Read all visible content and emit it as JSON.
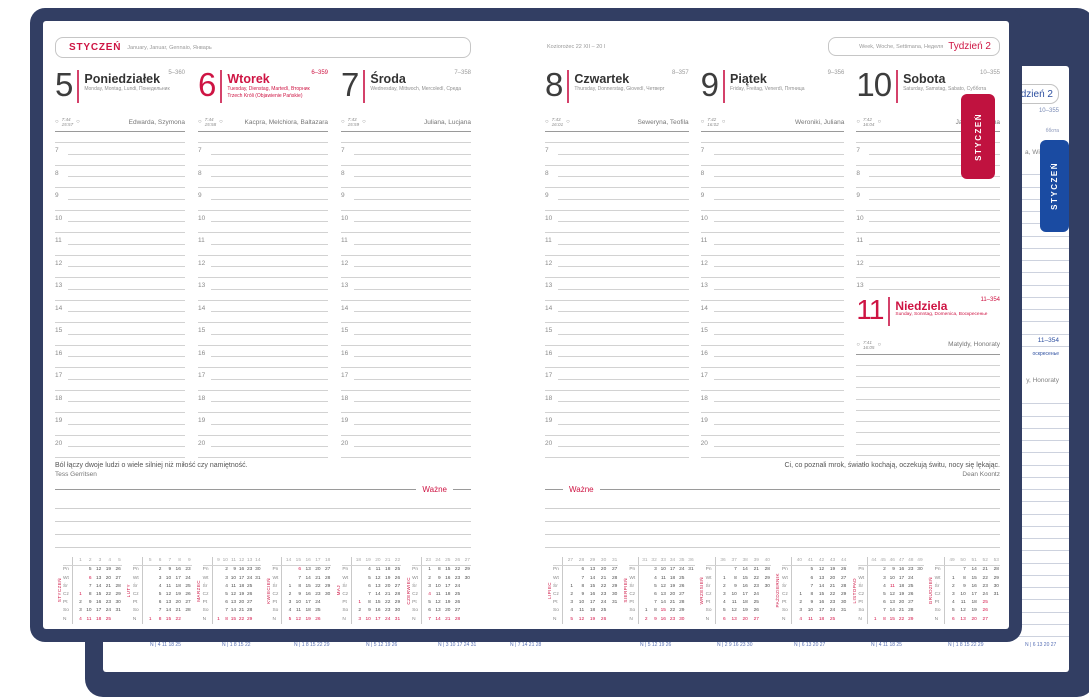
{
  "accent_red": "#ce1443",
  "accent_blue": "#1a4ba2",
  "cover_navy": "#323e63",
  "tabs": {
    "front": "STYCZEŃ",
    "back": "STYCZEŃ"
  },
  "page_left": {
    "month": "STYCZEŃ",
    "month_translations": "January, Januar, Gennaio, Январь",
    "quote": "Ból łączy dwoje ludzi o wiele silniej niż miłość czy namiętność.",
    "quote_author": "Tess Gerritsen",
    "important_label": "Ważne"
  },
  "page_right": {
    "zodiac": "Koziorożec 22 XII – 20 I",
    "week_translations": "Week, Woche, Settimana, Неделя",
    "week_label": "Tydzień 2",
    "quote": "Ci, co poznali mrok, światło kochają, oczekują świtu, nocy się lękając.",
    "quote_author": "Dean Koontz",
    "important_label": "Ważne"
  },
  "hour_labels": [
    7,
    8,
    9,
    10,
    11,
    12,
    13,
    14,
    15,
    16,
    17,
    18,
    19,
    20
  ],
  "days": [
    {
      "num": "5",
      "name": "Poniedziałek",
      "trans": "Monday, Montag, Lundi, Понедельник",
      "doy": "5–360",
      "sunrise": "7:44",
      "sunset": "15:57",
      "namedays": "Edwarda, Szymona"
    },
    {
      "num": "6",
      "name": "Wtorek",
      "trans": "Tuesday, Dienstag, Martedì, Вторник",
      "holiday": "Trzech Króli (Objawienie Pańskie)",
      "doy": "6–359",
      "sunrise": "7:44",
      "sunset": "15:58",
      "namedays": "Kacpra, Melchiora, Baltazara"
    },
    {
      "num": "7",
      "name": "Środa",
      "trans": "Wednesday, Mittwoch, Mercoledì, Среда",
      "doy": "7–358",
      "sunrise": "7:43",
      "sunset": "15:59",
      "namedays": "Juliana, Lucjana"
    },
    {
      "num": "8",
      "name": "Czwartek",
      "trans": "Thursday, Donnerstag, Giovedì, Четверг",
      "doy": "8–357",
      "sunrise": "7:43",
      "sunset": "16:01",
      "namedays": "Seweryna, Teofila"
    },
    {
      "num": "9",
      "name": "Piątek",
      "trans": "Friday, Freitag, Venerdì, Пятница",
      "doy": "9–356",
      "sunrise": "7:42",
      "sunset": "16:02",
      "namedays": "Weroniki, Juliana"
    },
    {
      "num": "10",
      "name": "Sobota",
      "trans": "Saturday, Samstag, Sabato, Суббота",
      "doy": "10–355",
      "sunrise": "7:42",
      "sunset": "16:04",
      "namedays": "Jana, Wilhelma"
    },
    {
      "num": "11",
      "name": "Niedziela",
      "trans": "Sunday, Sonntag, Domenica, Воскресенье",
      "doy": "11–354",
      "sunrise": "7:41",
      "sunset": "16:05",
      "namedays": "Matyldy, Honoraty"
    }
  ],
  "minicalendar": {
    "weekday_labels": [
      "Pn",
      "Wt",
      "Śr",
      "Cz",
      "Pt",
      "So",
      "N"
    ],
    "months": [
      {
        "name": "STYCZEŃ",
        "weeks": [
          1,
          2,
          3,
          4,
          5
        ],
        "rows": [
          [
            "",
            5,
            12,
            19,
            26
          ],
          [
            "",
            6,
            13,
            20,
            27
          ],
          [
            "",
            7,
            14,
            21,
            28
          ],
          [
            1,
            8,
            15,
            22,
            29
          ],
          [
            2,
            9,
            16,
            23,
            30
          ],
          [
            3,
            10,
            17,
            24,
            31
          ],
          [
            4,
            11,
            18,
            25,
            ""
          ]
        ],
        "red": [
          1,
          6,
          4,
          11,
          18,
          25
        ]
      },
      {
        "name": "LUTY",
        "weeks": [
          5,
          6,
          7,
          8,
          9
        ],
        "rows": [
          [
            "",
            2,
            9,
            16,
            23
          ],
          [
            "",
            3,
            10,
            17,
            24
          ],
          [
            "",
            4,
            11,
            18,
            25
          ],
          [
            "",
            5,
            12,
            19,
            26
          ],
          [
            "",
            6,
            13,
            20,
            27
          ],
          [
            "",
            7,
            14,
            21,
            28
          ],
          [
            1,
            8,
            15,
            22,
            ""
          ]
        ],
        "red": [
          1,
          8,
          15,
          22
        ]
      },
      {
        "name": "MARZEC",
        "weeks": [
          9,
          10,
          11,
          12,
          13,
          14
        ],
        "rows": [
          [
            "",
            2,
            9,
            16,
            23,
            30
          ],
          [
            "",
            3,
            10,
            17,
            24,
            31
          ],
          [
            "",
            4,
            11,
            18,
            25,
            ""
          ],
          [
            "",
            5,
            12,
            19,
            26,
            ""
          ],
          [
            "",
            6,
            13,
            20,
            27,
            ""
          ],
          [
            "",
            7,
            14,
            21,
            28,
            ""
          ],
          [
            1,
            8,
            15,
            22,
            29,
            ""
          ]
        ],
        "red": [
          1,
          8,
          15,
          22,
          29
        ]
      },
      {
        "name": "KWIECIEŃ",
        "weeks": [
          14,
          15,
          16,
          17,
          18
        ],
        "rows": [
          [
            "",
            6,
            13,
            20,
            27
          ],
          [
            "",
            7,
            14,
            21,
            28
          ],
          [
            1,
            8,
            15,
            22,
            29
          ],
          [
            2,
            9,
            16,
            23,
            30
          ],
          [
            3,
            10,
            17,
            24,
            ""
          ],
          [
            4,
            11,
            18,
            25,
            ""
          ],
          [
            5,
            12,
            19,
            26,
            ""
          ]
        ],
        "red": [
          5,
          6,
          12,
          19,
          26
        ]
      },
      {
        "name": "MAJ",
        "weeks": [
          18,
          19,
          20,
          21,
          22
        ],
        "rows": [
          [
            "",
            4,
            11,
            18,
            25
          ],
          [
            "",
            5,
            12,
            19,
            26
          ],
          [
            "",
            6,
            13,
            20,
            27
          ],
          [
            "",
            7,
            14,
            21,
            28
          ],
          [
            1,
            8,
            15,
            22,
            29
          ],
          [
            2,
            9,
            16,
            23,
            30
          ],
          [
            3,
            10,
            17,
            24,
            31
          ]
        ],
        "red": [
          1,
          3,
          10,
          17,
          24,
          31
        ]
      },
      {
        "name": "CZERWIEC",
        "weeks": [
          23,
          24,
          25,
          26,
          27
        ],
        "rows": [
          [
            1,
            8,
            15,
            22,
            29
          ],
          [
            2,
            9,
            16,
            23,
            30
          ],
          [
            3,
            10,
            17,
            24,
            ""
          ],
          [
            4,
            11,
            18,
            25,
            ""
          ],
          [
            5,
            12,
            19,
            26,
            ""
          ],
          [
            6,
            13,
            20,
            27,
            ""
          ],
          [
            7,
            14,
            21,
            28,
            ""
          ]
        ],
        "red": [
          4,
          7,
          14,
          21,
          28
        ]
      },
      {
        "name": "LIPIEC",
        "weeks": [
          27,
          28,
          29,
          30,
          31
        ],
        "rows": [
          [
            "",
            6,
            13,
            20,
            27
          ],
          [
            "",
            7,
            14,
            21,
            28
          ],
          [
            1,
            8,
            15,
            22,
            29
          ],
          [
            2,
            9,
            16,
            23,
            30
          ],
          [
            3,
            10,
            17,
            24,
            31
          ],
          [
            4,
            11,
            18,
            25,
            ""
          ],
          [
            5,
            12,
            19,
            26,
            ""
          ]
        ],
        "red": [
          5,
          12,
          19,
          26
        ]
      },
      {
        "name": "SIERPIEŃ",
        "weeks": [
          31,
          32,
          33,
          34,
          35,
          36
        ],
        "rows": [
          [
            "",
            3,
            10,
            17,
            24,
            31
          ],
          [
            "",
            4,
            11,
            18,
            25,
            ""
          ],
          [
            "",
            5,
            12,
            19,
            26,
            ""
          ],
          [
            "",
            6,
            13,
            20,
            27,
            ""
          ],
          [
            "",
            7,
            14,
            21,
            28,
            ""
          ],
          [
            1,
            8,
            15,
            22,
            29,
            ""
          ],
          [
            2,
            9,
            16,
            23,
            30,
            ""
          ]
        ],
        "red": [
          2,
          9,
          15,
          16,
          23,
          30
        ]
      },
      {
        "name": "WRZESIEŃ",
        "weeks": [
          36,
          37,
          38,
          39,
          40
        ],
        "rows": [
          [
            "",
            7,
            14,
            21,
            28
          ],
          [
            1,
            8,
            15,
            22,
            29
          ],
          [
            2,
            9,
            16,
            23,
            30
          ],
          [
            3,
            10,
            17,
            24,
            ""
          ],
          [
            4,
            11,
            18,
            25,
            ""
          ],
          [
            5,
            12,
            19,
            26,
            ""
          ],
          [
            6,
            13,
            20,
            27,
            ""
          ]
        ],
        "red": [
          6,
          13,
          20,
          27
        ]
      },
      {
        "name": "PAŹDZIERNIK",
        "weeks": [
          40,
          41,
          42,
          43,
          44
        ],
        "rows": [
          [
            "",
            5,
            12,
            19,
            26
          ],
          [
            "",
            6,
            13,
            20,
            27
          ],
          [
            "",
            7,
            14,
            21,
            28
          ],
          [
            1,
            8,
            15,
            22,
            29
          ],
          [
            2,
            9,
            16,
            23,
            30
          ],
          [
            3,
            10,
            17,
            24,
            31
          ],
          [
            4,
            11,
            18,
            25,
            ""
          ]
        ],
        "red": [
          4,
          11,
          18,
          25
        ]
      },
      {
        "name": "LISTOPAD",
        "weeks": [
          44,
          45,
          46,
          47,
          48,
          49
        ],
        "rows": [
          [
            "",
            2,
            9,
            16,
            23,
            30
          ],
          [
            "",
            3,
            10,
            17,
            24,
            ""
          ],
          [
            "",
            4,
            11,
            18,
            25,
            ""
          ],
          [
            "",
            5,
            12,
            19,
            26,
            ""
          ],
          [
            "",
            6,
            13,
            20,
            27,
            ""
          ],
          [
            "",
            7,
            14,
            21,
            28,
            ""
          ],
          [
            1,
            8,
            15,
            22,
            29,
            ""
          ]
        ],
        "red": [
          1,
          8,
          11,
          15,
          22,
          29
        ]
      },
      {
        "name": "GRUDZIEŃ",
        "weeks": [
          49,
          50,
          51,
          52,
          53
        ],
        "rows": [
          [
            "",
            7,
            14,
            21,
            28
          ],
          [
            1,
            8,
            15,
            22,
            29
          ],
          [
            2,
            9,
            16,
            23,
            30
          ],
          [
            3,
            10,
            17,
            24,
            31
          ],
          [
            4,
            11,
            18,
            25,
            ""
          ],
          [
            5,
            12,
            19,
            26,
            ""
          ],
          [
            6,
            13,
            20,
            27,
            ""
          ]
        ],
        "red": [
          6,
          13,
          20,
          25,
          26,
          27
        ]
      }
    ]
  },
  "back_page": {
    "week_fragment": "Tydzień 2",
    "doy_fragment": "10–355",
    "trans_fragment": "ббота",
    "namedays_fragment": "a, Wilhelma",
    "sunday_doy_fragment": "11–354",
    "sunday_trans_fragment": "оскресенье",
    "sunday_namedays_fragment": "y, Honoraty",
    "sunday_row_label": "N",
    "bottom_rows": [
      "4 11 18 25",
      "1 8 15 22",
      "1 8 15 22 29",
      "5 12 19 26",
      "3 10 17 24 31",
      "7 14 21 28",
      "5 12 19 26",
      "2 9 16 23 30",
      "6 13 20 27",
      "4 11 18 25",
      "1 8 15 22 29",
      "6 13 20 27"
    ]
  }
}
